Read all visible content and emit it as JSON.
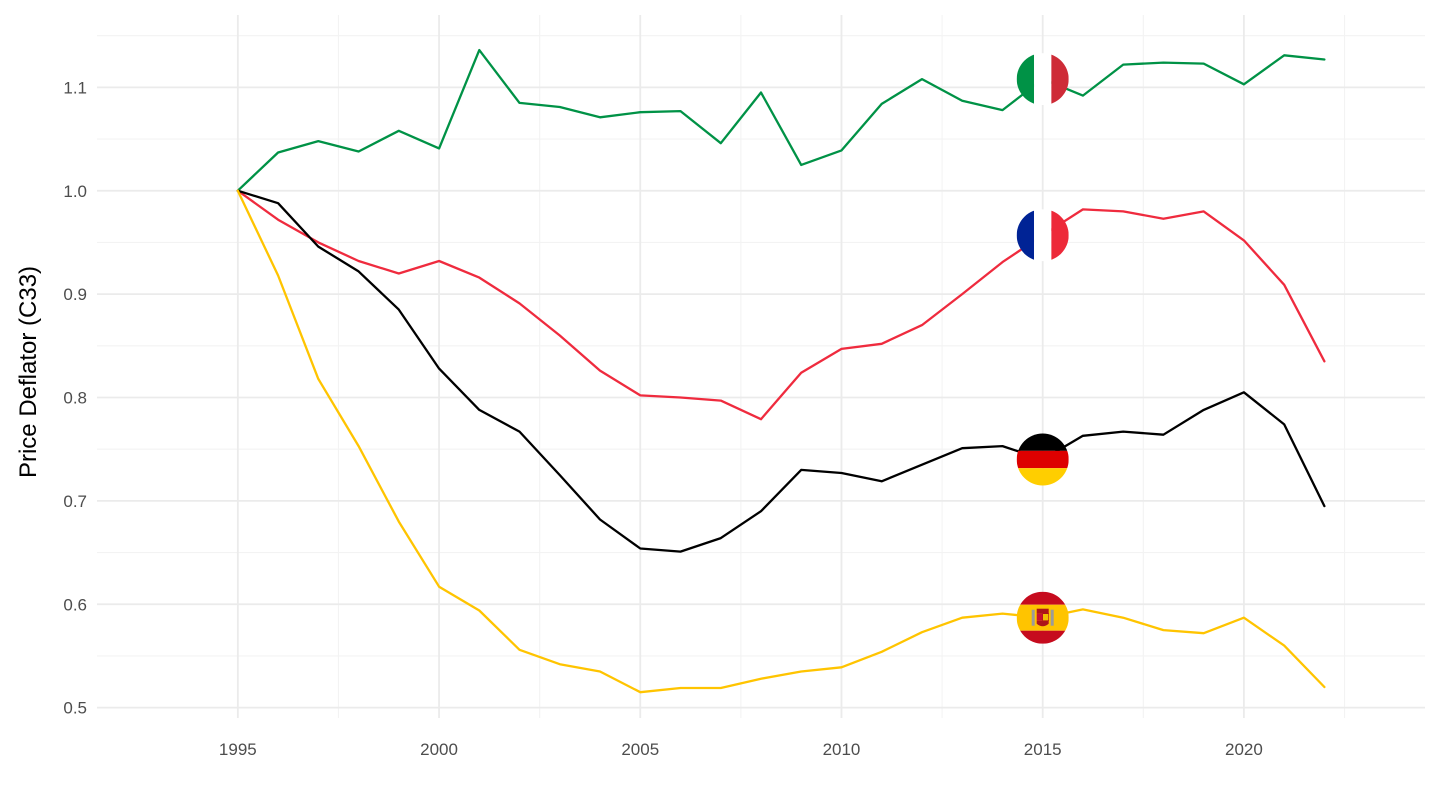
{
  "chart_data": {
    "type": "line",
    "xlabel": "",
    "ylabel": "Price Deflator (C33)",
    "xlim": [
      1991.5,
      2024.5
    ],
    "ylim": [
      0.49,
      1.17
    ],
    "x_ticks": [
      1995,
      2000,
      2005,
      2010,
      2015,
      2020
    ],
    "x_tick_labels": [
      "1995",
      "2000",
      "2005",
      "2010",
      "2015",
      "2020"
    ],
    "y_ticks": [
      0.5,
      0.6,
      0.7,
      0.8,
      0.9,
      1.0,
      1.1
    ],
    "y_tick_labels": [
      "0.5",
      "0.6",
      "0.7",
      "0.8",
      "0.9",
      "1.0",
      "1.1"
    ],
    "grid": true,
    "legend": "flag markers at 2015",
    "x": [
      1995,
      1996,
      1997,
      1998,
      1999,
      2000,
      2001,
      2002,
      2003,
      2004,
      2005,
      2006,
      2007,
      2008,
      2009,
      2010,
      2011,
      2012,
      2013,
      2014,
      2015,
      2016,
      2017,
      2018,
      2019,
      2020,
      2021,
      2022
    ],
    "series": [
      {
        "id": "italy",
        "flag": "italy-flag-icon",
        "color": "#009246",
        "values": [
          1.0,
          1.037,
          1.048,
          1.038,
          1.058,
          1.041,
          1.136,
          1.085,
          1.081,
          1.071,
          1.076,
          1.077,
          1.046,
          1.095,
          1.025,
          1.039,
          1.084,
          1.108,
          1.087,
          1.078,
          1.108,
          1.092,
          1.122,
          1.124,
          1.123,
          1.103,
          1.131,
          1.127
        ],
        "marker_value": 1.108
      },
      {
        "id": "france",
        "flag": "france-flag-icon",
        "color": "#ef2b3e",
        "values": [
          1.0,
          0.972,
          0.95,
          0.932,
          0.92,
          0.932,
          0.916,
          0.891,
          0.86,
          0.826,
          0.802,
          0.8,
          0.797,
          0.779,
          0.824,
          0.847,
          0.852,
          0.87,
          0.9,
          0.931,
          0.957,
          0.982,
          0.98,
          0.973,
          0.98,
          0.952,
          0.909,
          0.835
        ],
        "marker_value": 0.957
      },
      {
        "id": "germany",
        "flag": "germany-flag-icon",
        "color": "#000000",
        "values": [
          1.0,
          0.988,
          0.946,
          0.922,
          0.885,
          0.828,
          0.788,
          0.767,
          0.725,
          0.682,
          0.654,
          0.651,
          0.664,
          0.69,
          0.73,
          0.727,
          0.719,
          0.735,
          0.751,
          0.753,
          0.74,
          0.763,
          0.767,
          0.764,
          0.788,
          0.805,
          0.774,
          0.695
        ],
        "marker_value": 0.74
      },
      {
        "id": "spain",
        "flag": "spain-flag-icon",
        "color": "#ffc400",
        "values": [
          1.0,
          0.918,
          0.818,
          0.753,
          0.68,
          0.617,
          0.594,
          0.556,
          0.542,
          0.535,
          0.515,
          0.519,
          0.519,
          0.528,
          0.535,
          0.539,
          0.554,
          0.573,
          0.587,
          0.591,
          0.587,
          0.595,
          0.587,
          0.575,
          0.572,
          0.587,
          0.56,
          0.52
        ],
        "marker_value": 0.587
      }
    ],
    "marker_year": 2015
  }
}
